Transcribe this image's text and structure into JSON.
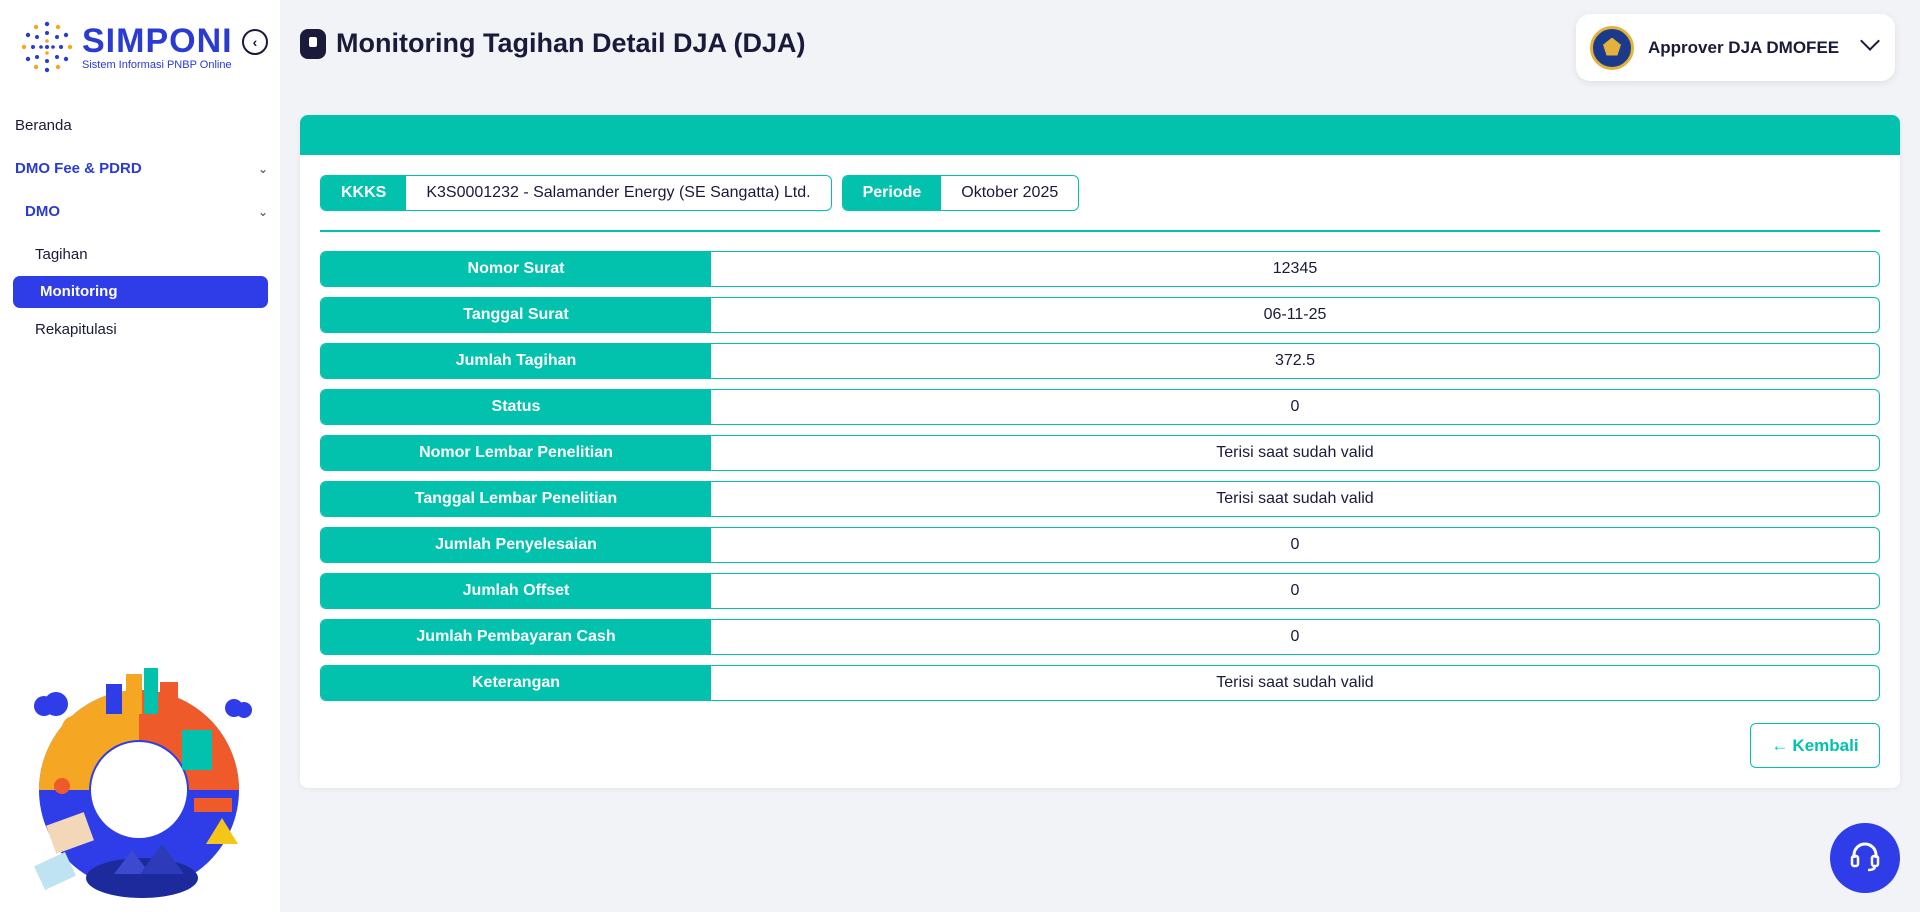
{
  "app": {
    "logo_title": "SIMPONI",
    "logo_subtitle": "Sistem Informasi PNBP Online"
  },
  "colors": {
    "primary": "#2f3de8",
    "accent_teal": "#02c2ad",
    "text_dark": "#1a1a3a"
  },
  "sidebar": {
    "collapse_icon": "chevron-left-icon",
    "items": [
      {
        "label": "Beranda"
      },
      {
        "label": "DMO Fee & PDRD",
        "expanded": true
      },
      {
        "label": "DMO",
        "expanded": true
      },
      {
        "label": "Tagihan"
      },
      {
        "label": "Monitoring",
        "active": true
      },
      {
        "label": "Rekapitulasi"
      }
    ]
  },
  "header": {
    "icon": "clipboard-icon",
    "title": "Monitoring Tagihan Detail DJA (DJA)"
  },
  "user": {
    "name": "Approver DJA DMOFEE",
    "avatar_icon": "kemenkeu-emblem-icon"
  },
  "filters": {
    "kkks_label": "KKKS",
    "kkks_value": "K3S0001232 - Salamander Energy (SE Sangatta) Ltd.",
    "periode_label": "Periode",
    "periode_value": "Oktober 2025"
  },
  "details": [
    {
      "label": "Nomor Surat",
      "value": "12345"
    },
    {
      "label": "Tanggal Surat",
      "value": "06-11-25"
    },
    {
      "label": "Jumlah Tagihan",
      "value": "372.5"
    },
    {
      "label": "Status",
      "value": "0"
    },
    {
      "label": "Nomor Lembar Penelitian",
      "value": "Terisi saat sudah valid"
    },
    {
      "label": "Tanggal Lembar Penelitian",
      "value": "Terisi saat sudah valid"
    },
    {
      "label": "Jumlah Penyelesaian",
      "value": "0"
    },
    {
      "label": "Jumlah Offset",
      "value": "0"
    },
    {
      "label": "Jumlah Pembayaran Cash",
      "value": "0"
    },
    {
      "label": "Keterangan",
      "value": "Terisi saat sudah valid"
    }
  ],
  "actions": {
    "back_label": "Kembali",
    "back_icon": "arrow-left-icon",
    "help_icon": "headset-icon"
  }
}
